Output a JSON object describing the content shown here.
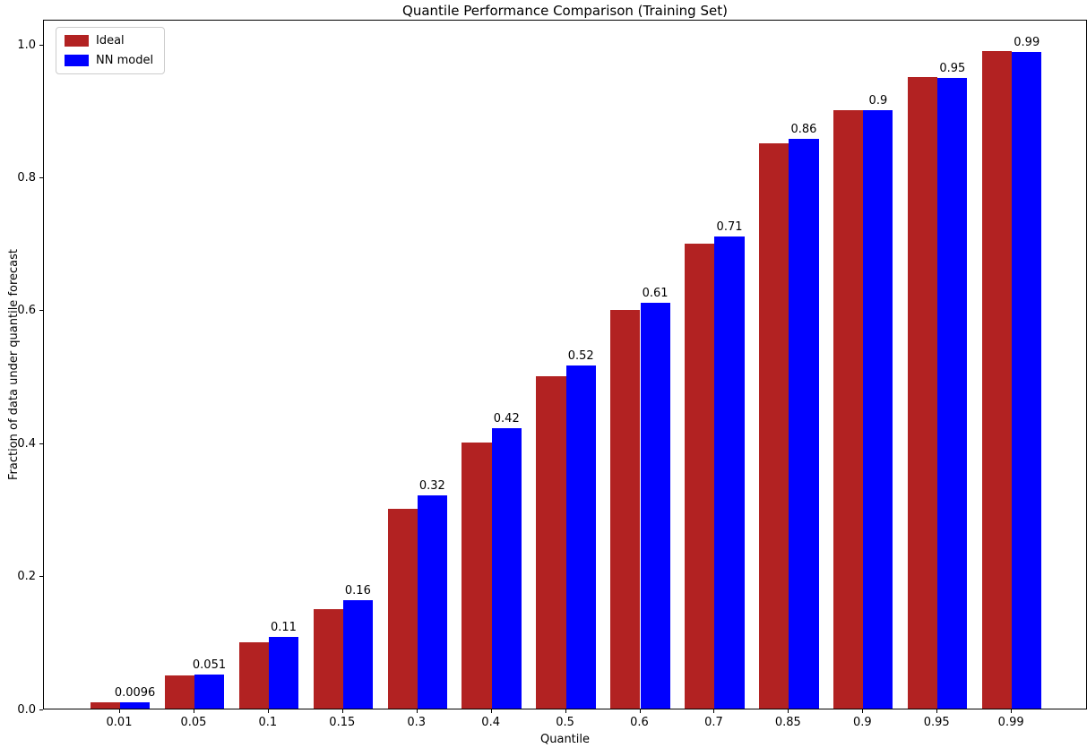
{
  "chart_data": {
    "type": "bar",
    "title": "Quantile Performance Comparison (Training Set)",
    "xlabel": "Quantile",
    "ylabel": "Fraction of data under quantile forecast",
    "categories": [
      "0.01",
      "0.05",
      "0.1",
      "0.15",
      "0.3",
      "0.4",
      "0.5",
      "0.6",
      "0.7",
      "0.85",
      "0.9",
      "0.95",
      "0.99"
    ],
    "series": [
      {
        "name": "Ideal",
        "color": "#b22222",
        "values": [
          0.01,
          0.05,
          0.1,
          0.15,
          0.3,
          0.4,
          0.5,
          0.6,
          0.7,
          0.85,
          0.9,
          0.95,
          0.99
        ]
      },
      {
        "name": "NN model",
        "color": "#0000ff",
        "values": [
          0.0096,
          0.051,
          0.108,
          0.163,
          0.321,
          0.422,
          0.516,
          0.611,
          0.71,
          0.857,
          0.901,
          0.949,
          0.988
        ],
        "bar_labels": [
          "0.0096",
          "0.051",
          "0.11",
          "0.16",
          "0.32",
          "0.42",
          "0.52",
          "0.61",
          "0.71",
          "0.86",
          "0.9",
          "0.95",
          "0.99"
        ]
      }
    ],
    "yticks": [
      "0.0",
      "0.2",
      "0.4",
      "0.6",
      "0.8",
      "1.0"
    ],
    "ylim": [
      0,
      1.038
    ],
    "legend_position": "upper left",
    "grid": false
  }
}
